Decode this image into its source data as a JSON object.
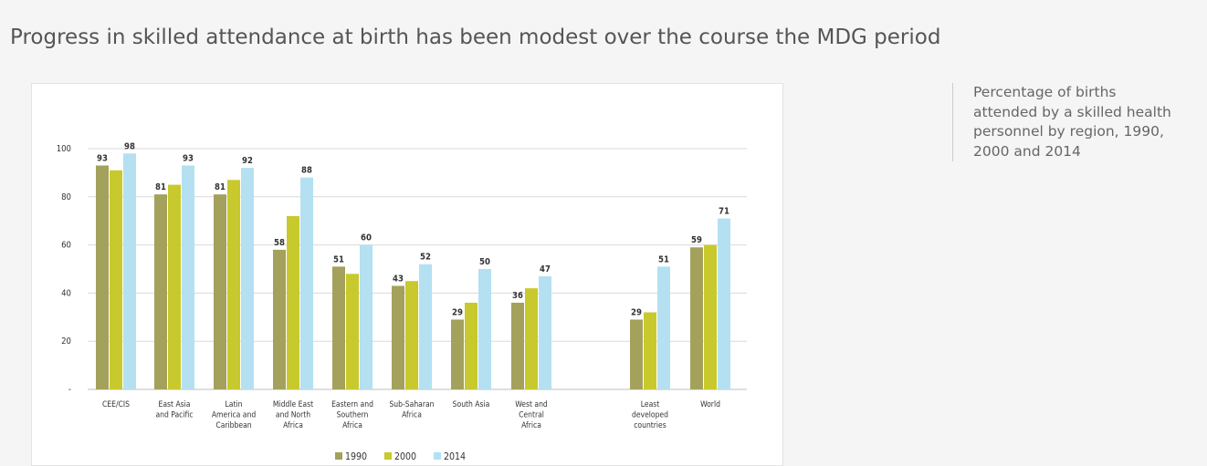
{
  "page": {
    "title": "Progress in skilled attendance at birth has been modest over the course the MDG period",
    "caption_lines": [
      "Percentage of births",
      "attended by a skilled health",
      "personnel by region, 1990,",
      "2000 and 2014"
    ]
  },
  "chart_data": {
    "type": "bar",
    "title": "",
    "xlabel": "",
    "ylabel": "",
    "ylim": [
      0,
      100
    ],
    "yticks": [
      {
        "value": 0,
        "label": "-"
      },
      {
        "value": 20,
        "label": "20"
      },
      {
        "value": 40,
        "label": "40"
      },
      {
        "value": 60,
        "label": "60"
      },
      {
        "value": 80,
        "label": "80"
      },
      {
        "value": 100,
        "label": "100"
      }
    ],
    "grid": true,
    "legend_position": "bottom",
    "categories": [
      [
        "CEE/CIS"
      ],
      [
        "East Asia",
        "and Pacific"
      ],
      [
        "Latin",
        "America and",
        "Caribbean"
      ],
      [
        "Middle East",
        "and North",
        "Africa"
      ],
      [
        "Eastern and",
        "Southern",
        "Africa"
      ],
      [
        "Sub-Saharan",
        "Africa"
      ],
      [
        "South Asia"
      ],
      [
        "West and",
        "Central",
        "Africa"
      ],
      [
        "Least",
        "developed",
        "countries"
      ],
      [
        "World"
      ]
    ],
    "series": [
      {
        "name": "1990",
        "color": "#a3a15c",
        "values": [
          93,
          81,
          81,
          58,
          51,
          43,
          29,
          36,
          29,
          59
        ]
      },
      {
        "name": "2000",
        "color": "#c8c92d",
        "values": [
          91,
          85,
          87,
          72,
          48,
          45,
          36,
          42,
          32,
          60
        ]
      },
      {
        "name": "2014",
        "color": "#b4e0f2",
        "values": [
          98,
          93,
          92,
          88,
          60,
          52,
          50,
          47,
          51,
          71
        ]
      }
    ],
    "data_labels": [
      [
        "93",
        null,
        "98"
      ],
      [
        "81",
        null,
        "93"
      ],
      [
        "81",
        null,
        "92"
      ],
      [
        "58",
        null,
        "88"
      ],
      [
        "51",
        null,
        "60"
      ],
      [
        "43",
        null,
        "52"
      ],
      [
        "29",
        null,
        "50"
      ],
      [
        "36",
        null,
        "47"
      ],
      [
        "29",
        null,
        "51"
      ],
      [
        "59",
        null,
        "71"
      ]
    ]
  }
}
